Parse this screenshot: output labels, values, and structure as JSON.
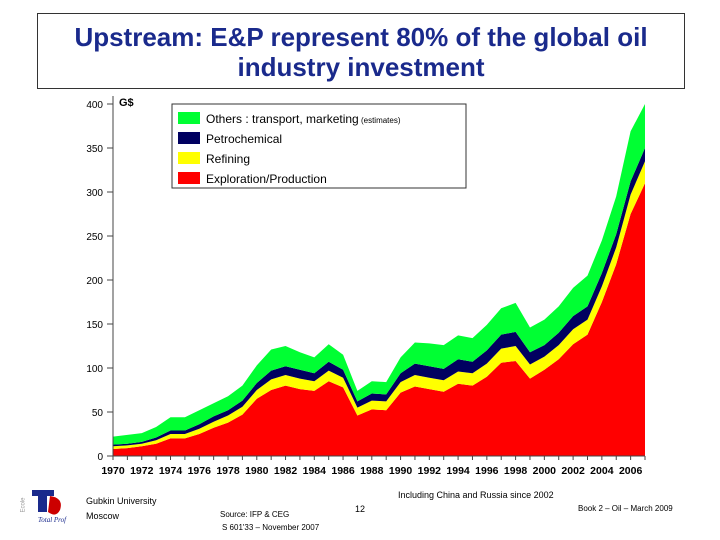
{
  "header": {
    "title": "Upstream: E&P represent 80% of the global oil industry investment"
  },
  "chart_data": {
    "type": "area",
    "stacked": true,
    "unit_label": "G$",
    "ylim": [
      0,
      400
    ],
    "y_ticks": [
      0,
      50,
      100,
      150,
      200,
      250,
      300,
      350,
      400
    ],
    "x_ticks": [
      "1970",
      "1972",
      "1974",
      "1976",
      "1978",
      "1980",
      "1982",
      "1984",
      "1986",
      "1988",
      "1990",
      "1992",
      "1994",
      "1996",
      "1998",
      "2000",
      "2002",
      "2004",
      "2006"
    ],
    "x": [
      1970,
      1971,
      1972,
      1973,
      1974,
      1975,
      1976,
      1977,
      1978,
      1979,
      1980,
      1981,
      1982,
      1983,
      1984,
      1985,
      1986,
      1987,
      1988,
      1989,
      1990,
      1991,
      1992,
      1993,
      1994,
      1995,
      1996,
      1997,
      1998,
      1999,
      2000,
      2001,
      2002,
      2003,
      2004,
      2005,
      2006,
      2007
    ],
    "series": [
      {
        "name": "Exploration/Production",
        "color": "#ff0000",
        "values": [
          8,
          9,
          11,
          14,
          20,
          20,
          25,
          32,
          38,
          47,
          65,
          75,
          80,
          76,
          74,
          85,
          78,
          46,
          53,
          52,
          72,
          79,
          76,
          73,
          82,
          80,
          90,
          106,
          108,
          88,
          98,
          110,
          127,
          138,
          175,
          218,
          275,
          310
        ]
      },
      {
        "name": "Refining",
        "color": "#ffff00",
        "values": [
          3,
          3,
          3,
          4,
          5,
          5,
          6,
          7,
          8,
          9,
          10,
          12,
          12,
          12,
          11,
          12,
          11,
          9,
          10,
          10,
          12,
          13,
          13,
          13,
          14,
          14,
          15,
          16,
          17,
          16,
          15,
          16,
          17,
          17,
          18,
          19,
          22,
          25
        ]
      },
      {
        "name": "Petrochemical",
        "color": "#000060",
        "values": [
          2,
          2,
          2,
          3,
          4,
          4,
          5,
          6,
          6,
          7,
          8,
          10,
          10,
          10,
          9,
          10,
          9,
          7,
          8,
          8,
          10,
          13,
          13,
          13,
          14,
          13,
          15,
          16,
          16,
          14,
          13,
          14,
          15,
          15,
          15,
          15,
          15,
          15
        ]
      },
      {
        "name": "Others : transport, marketing",
        "name_note": "(estimates)",
        "color": "#00ff33",
        "values": [
          9,
          10,
          10,
          12,
          15,
          15,
          16,
          15,
          16,
          17,
          20,
          24,
          23,
          20,
          18,
          20,
          17,
          12,
          14,
          14,
          18,
          24,
          26,
          27,
          27,
          27,
          29,
          30,
          33,
          28,
          29,
          30,
          32,
          35,
          37,
          43,
          57,
          50
        ]
      }
    ],
    "legend_order": [
      3,
      2,
      1,
      0
    ],
    "legend_position": "top-center"
  },
  "footer": {
    "note": "Including China and Russia since 2002",
    "institution_line1": "Gubkin University",
    "institution_line2": "Moscow",
    "source_line1": "Source: IFP & CEG",
    "source_line2": "S 601'33 – November 2007",
    "page_number": "12",
    "book_ref": "Book 2 – Oil – March 2009",
    "logo_text": "Total Prof",
    "logo_side_text": "Ecole"
  }
}
